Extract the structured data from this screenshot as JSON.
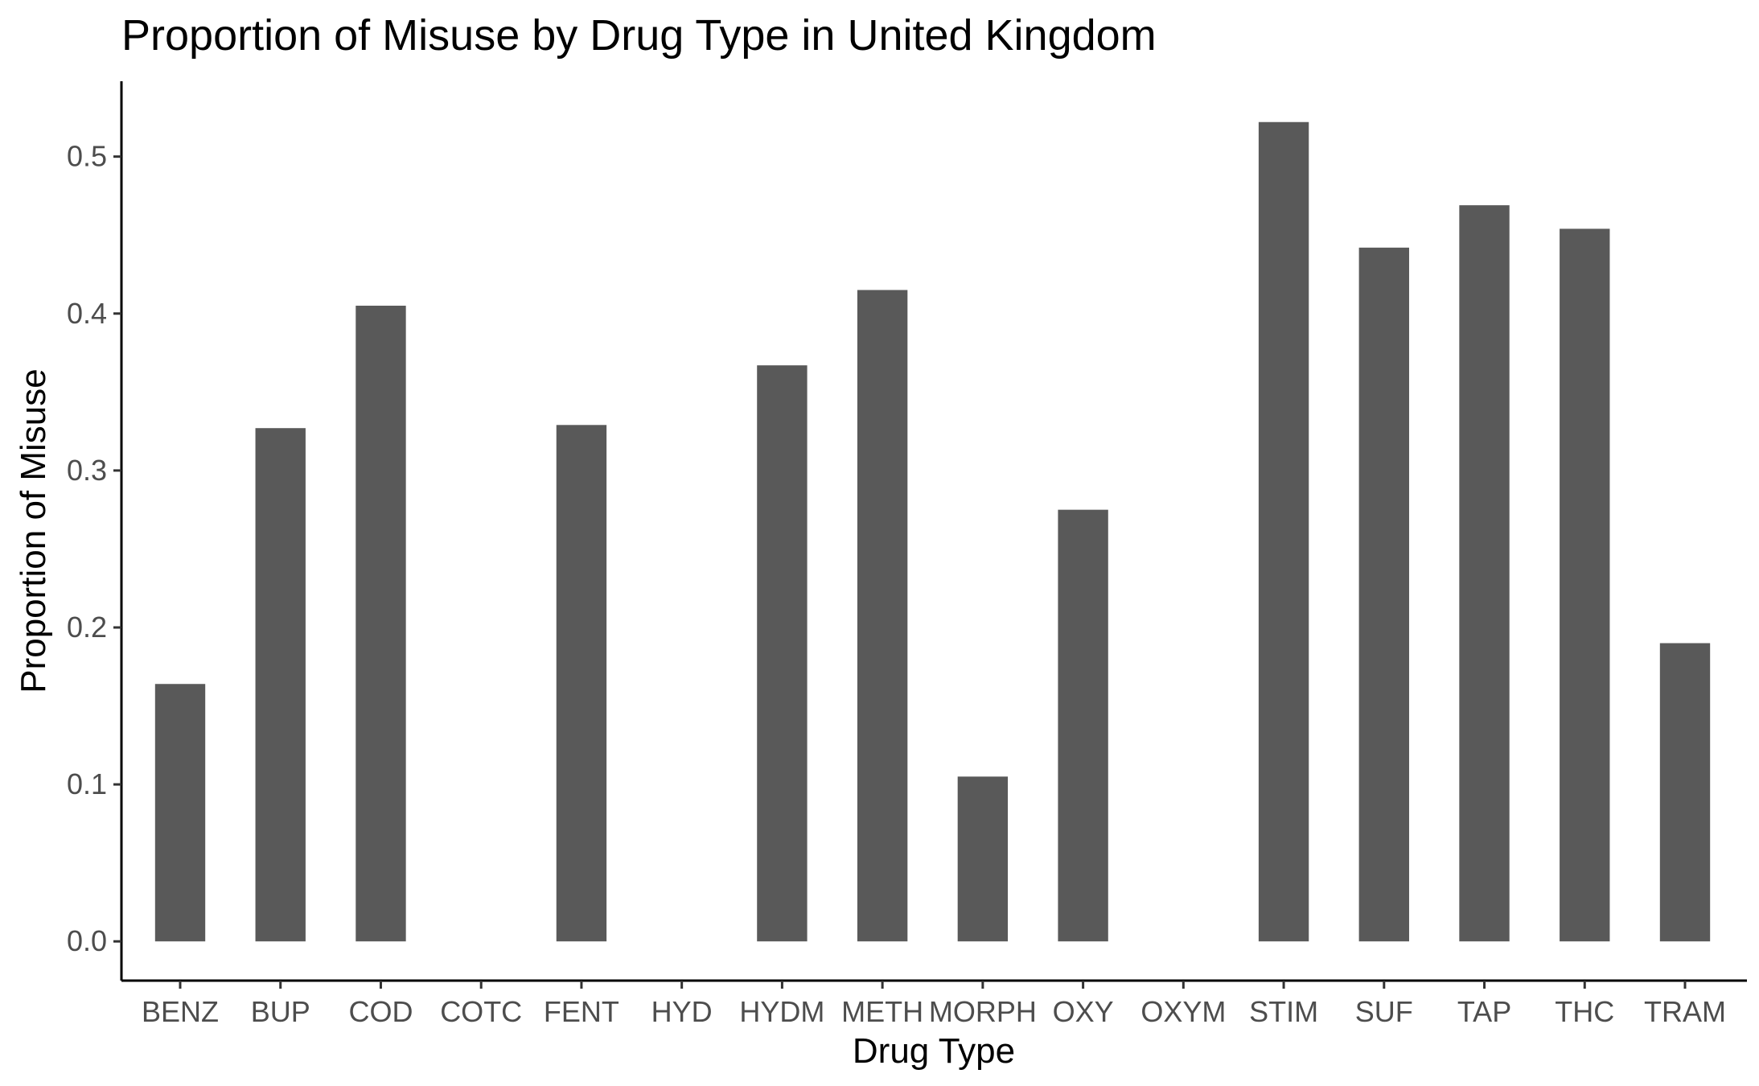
{
  "chart_data": {
    "type": "bar",
    "title": "Proportion of Misuse by Drug Type in United Kingdom",
    "xlabel": "Drug Type",
    "ylabel": "Proportion of Misuse",
    "categories": [
      "BENZ",
      "BUP",
      "COD",
      "COTC",
      "FENT",
      "HYD",
      "HYDM",
      "METH",
      "MORPH",
      "OXY",
      "OXYM",
      "STIM",
      "SUF",
      "TAP",
      "THC",
      "TRAM"
    ],
    "values": [
      0.164,
      0.327,
      0.405,
      0,
      0.329,
      0,
      0.367,
      0.415,
      0.105,
      0.275,
      0,
      0.522,
      0.442,
      0.469,
      0.454,
      0.19
    ],
    "yticks": [
      "0.0",
      "0.1",
      "0.2",
      "0.3",
      "0.4",
      "0.5"
    ],
    "ylim": [
      -0.025,
      0.548
    ],
    "grid": false,
    "bar_color": "#595959"
  }
}
